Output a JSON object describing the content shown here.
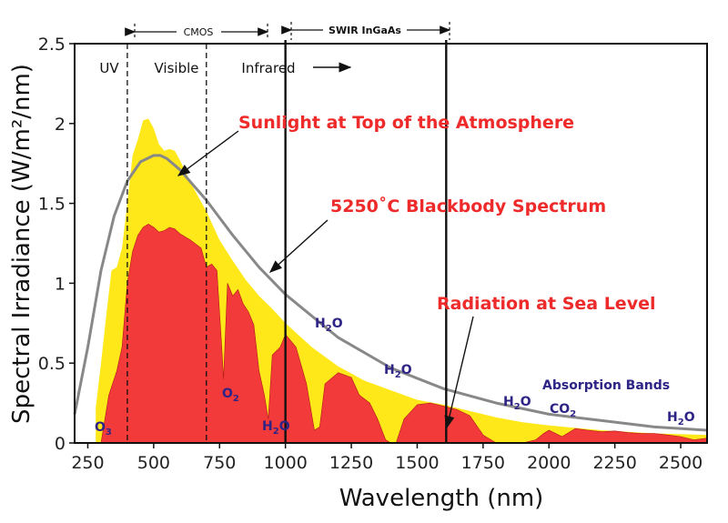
{
  "chart_data": {
    "type": "area",
    "xlabel": "Wavelength (nm)",
    "ylabel": "Spectral Irradiance (W/m²/nm)",
    "xlim": [
      200,
      2600
    ],
    "ylim": [
      0,
      2.5
    ],
    "x_ticks": [
      "250",
      "500",
      "750",
      "1000",
      "1250",
      "1500",
      "1750",
      "2000",
      "2250",
      "2500"
    ],
    "y_ticks": [
      "0",
      "0.5",
      "1",
      "1.5",
      "2",
      "2.5"
    ],
    "grid": false,
    "colors": {
      "top_of_atmosphere": "#ffe81a",
      "sea_level": "#f23a3a",
      "blackbody": "#888888",
      "labels": "#ee2a2a",
      "molecules": "#2e2486"
    },
    "series": [
      {
        "name": "Sunlight at Top of the Atmosphere",
        "x": [
          280,
          300,
          320,
          340,
          360,
          380,
          400,
          420,
          440,
          460,
          480,
          500,
          520,
          540,
          560,
          580,
          600,
          650,
          700,
          750,
          800,
          850,
          900,
          950,
          1000,
          1100,
          1200,
          1300,
          1400,
          1500,
          1600,
          1700,
          1800,
          1900,
          2000,
          2200,
          2400,
          2600
        ],
        "values": [
          0.22,
          0.5,
          0.8,
          1.08,
          1.1,
          1.22,
          1.5,
          1.8,
          1.9,
          2.02,
          2.03,
          1.97,
          1.87,
          1.83,
          1.84,
          1.83,
          1.77,
          1.6,
          1.45,
          1.27,
          1.14,
          1.02,
          0.92,
          0.84,
          0.75,
          0.6,
          0.48,
          0.39,
          0.33,
          0.27,
          0.24,
          0.2,
          0.16,
          0.13,
          0.11,
          0.08,
          0.06,
          0.05
        ]
      },
      {
        "name": "5250˚C Blackbody Spectrum",
        "x": [
          200,
          250,
          300,
          350,
          400,
          450,
          500,
          525,
          550,
          600,
          700,
          800,
          900,
          1000,
          1200,
          1400,
          1600,
          1800,
          2000,
          2200,
          2400,
          2600
        ],
        "values": [
          0.18,
          0.6,
          1.08,
          1.42,
          1.64,
          1.76,
          1.8,
          1.8,
          1.78,
          1.71,
          1.52,
          1.3,
          1.1,
          0.93,
          0.66,
          0.47,
          0.34,
          0.25,
          0.18,
          0.14,
          0.1,
          0.08
        ]
      },
      {
        "name": "Radiation at Sea Level",
        "x": [
          300,
          330,
          360,
          380,
          400,
          420,
          440,
          460,
          480,
          500,
          520,
          540,
          560,
          580,
          600,
          640,
          680,
          700,
          720,
          740,
          760,
          765,
          780,
          800,
          820,
          840,
          860,
          880,
          900,
          920,
          935,
          950,
          980,
          1000,
          1040,
          1080,
          1110,
          1130,
          1150,
          1200,
          1250,
          1280,
          1320,
          1350,
          1380,
          1400,
          1420,
          1450,
          1500,
          1550,
          1600,
          1650,
          1700,
          1750,
          1800,
          1850,
          1900,
          1950,
          1980,
          2000,
          2050,
          2100,
          2150,
          2200,
          2250,
          2300,
          2350,
          2400,
          2450,
          2500,
          2550,
          2600
        ],
        "values": [
          0.0,
          0.3,
          0.45,
          0.6,
          1.0,
          1.2,
          1.3,
          1.35,
          1.37,
          1.35,
          1.32,
          1.33,
          1.35,
          1.34,
          1.31,
          1.27,
          1.22,
          1.1,
          1.12,
          1.08,
          0.55,
          0.4,
          1.0,
          0.92,
          0.96,
          0.87,
          0.82,
          0.74,
          0.45,
          0.3,
          0.15,
          0.55,
          0.6,
          0.68,
          0.6,
          0.37,
          0.08,
          0.1,
          0.37,
          0.44,
          0.41,
          0.3,
          0.25,
          0.15,
          0.02,
          0.0,
          0.0,
          0.15,
          0.24,
          0.25,
          0.23,
          0.21,
          0.17,
          0.05,
          0.0,
          0.0,
          0.0,
          0.02,
          0.06,
          0.08,
          0.04,
          0.09,
          0.08,
          0.07,
          0.075,
          0.065,
          0.06,
          0.06,
          0.05,
          0.04,
          0.02,
          0.03
        ]
      }
    ],
    "regions": [
      {
        "label": "UV",
        "x": 250
      },
      {
        "label": "Visible",
        "x": 540
      },
      {
        "label": "Infrared",
        "x": 800
      }
    ],
    "dashed_lines_x": [
      400,
      700
    ],
    "solid_lines_x": [
      1000,
      1610
    ],
    "brackets": [
      {
        "label": "CMOS",
        "from": 400,
        "to": 1000
      },
      {
        "label": "SWIR InGaAs",
        "from": 1000,
        "to": 1610
      }
    ],
    "annotations": [
      {
        "text": "Sunlight at Top of the Atmosphere",
        "arrow_to": [
          520,
          1.65
        ]
      },
      {
        "text": "5250˚C Blackbody Spectrum",
        "arrow_to": [
          880,
          1.1
        ]
      },
      {
        "text": "Radiation at Sea Level",
        "arrow_to": [
          1610,
          0.1
        ]
      }
    ],
    "absorption_bands_label": "Absorption Bands",
    "molecules": [
      {
        "base": "O",
        "sub": "3"
      },
      {
        "base": "O",
        "sub": "2"
      },
      {
        "base": "H",
        "sub": "2",
        "rest": "O"
      },
      {
        "base": "H",
        "sub": "2",
        "rest": "O"
      },
      {
        "base": "H",
        "sub": "2",
        "rest": "O"
      },
      {
        "base": "H",
        "sub": "2",
        "rest": "O"
      },
      {
        "base": "CO",
        "sub": "2"
      },
      {
        "base": "H",
        "sub": "2",
        "rest": "O"
      }
    ]
  }
}
